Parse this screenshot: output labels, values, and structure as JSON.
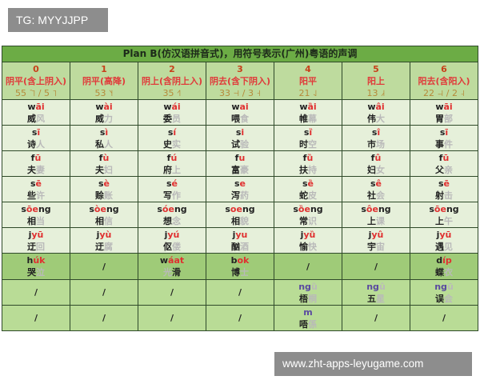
{
  "watermark_top": "TG: MYYJJPP",
  "watermark_bottom": "www.zht-apps-leyugame.com",
  "title": "Plan B(仿汉语拼音式)，用符号表示(广州)粤语的声调",
  "headers": [
    {
      "num": "0",
      "name": "阴平(含上阴入)",
      "value": "55 ˥˥ / 5 ˥"
    },
    {
      "num": "1",
      "name": "阴平(高降)",
      "value": "53 ˥˧"
    },
    {
      "num": "2",
      "name": "阴上(含阴上入)",
      "value": "35 ˧˥"
    },
    {
      "num": "3",
      "name": "阴去(含下阴入)",
      "value": "33 ˧˧ / 3 ˧"
    },
    {
      "num": "4",
      "name": "阳平",
      "value": "21 ˨˩"
    },
    {
      "num": "5",
      "name": "阳上",
      "value": "13 ˩˧"
    },
    {
      "num": "6",
      "name": "阳去(含阳入)",
      "value": "22 ˨˨ / 2 ˨"
    }
  ],
  "rows": [
    {
      "style": "light",
      "cells": [
        {
          "ini": "w",
          "fin": "āi",
          "w1": "威",
          "w2": "风"
        },
        {
          "ini": "w",
          "fin": "ài",
          "w1": "威",
          "w2": "力"
        },
        {
          "ini": "w",
          "fin": "ái",
          "w1": "委",
          "w2": "员"
        },
        {
          "ini": "w",
          "fin": "ai",
          "w1": "喂",
          "w2": "食"
        },
        {
          "ini": "w",
          "fin": "ȁi",
          "w1": "帷",
          "w2": "幕"
        },
        {
          "ini": "w",
          "fin": "âi",
          "w1": "伟",
          "w2": "大"
        },
        {
          "ini": "w",
          "fin": "āi",
          "w1": "胃",
          "w2": "部"
        }
      ]
    },
    {
      "style": "light",
      "cells": [
        {
          "ini": "s",
          "fin": "ī",
          "w1": "诗",
          "w2": "人"
        },
        {
          "ini": "s",
          "fin": "ì",
          "w1": "私",
          "w2": "人"
        },
        {
          "ini": "s",
          "fin": "í",
          "w1": "史",
          "w2": "实"
        },
        {
          "ini": "s",
          "fin": "i",
          "w1": "试",
          "w2": "验"
        },
        {
          "ini": "s",
          "fin": "ȉ",
          "w1": "时",
          "w2": "空"
        },
        {
          "ini": "s",
          "fin": "î",
          "w1": "市",
          "w2": "场"
        },
        {
          "ini": "s",
          "fin": "ī",
          "w1": "事",
          "w2": "件"
        }
      ]
    },
    {
      "style": "light",
      "cells": [
        {
          "ini": "f",
          "fin": "ū",
          "w1": "夫",
          "w2": "妻"
        },
        {
          "ini": "f",
          "fin": "ù",
          "w1": "夫",
          "w2": "妇"
        },
        {
          "ini": "f",
          "fin": "ú",
          "w1": "府",
          "w2": "上"
        },
        {
          "ini": "f",
          "fin": "u",
          "w1": "富",
          "w2": "豪"
        },
        {
          "ini": "f",
          "fin": "ȕ",
          "w1": "扶",
          "w2": "持"
        },
        {
          "ini": "f",
          "fin": "û",
          "w1": "妇",
          "w2": "女"
        },
        {
          "ini": "f",
          "fin": "ū",
          "w1": "父",
          "w2": "亲"
        }
      ]
    },
    {
      "style": "light",
      "cells": [
        {
          "ini": "s",
          "fin": "ē",
          "w1": "些",
          "w2": "许"
        },
        {
          "ini": "s",
          "fin": "è",
          "w1": "赊",
          "w2": "账"
        },
        {
          "ini": "s",
          "fin": "é",
          "w1": "写",
          "w2": "作"
        },
        {
          "ini": "s",
          "fin": "e",
          "w1": "泻",
          "w2": "药"
        },
        {
          "ini": "s",
          "fin": "ȅ",
          "w1": "蛇",
          "w2": "皮"
        },
        {
          "ini": "s",
          "fin": "ê",
          "w1": "社",
          "w2": "会"
        },
        {
          "ini": "s",
          "fin": "ē",
          "w1": "射",
          "w2": "击"
        }
      ]
    },
    {
      "style": "light",
      "cells": [
        {
          "ini": "s",
          "fin": "ōe",
          "tail": "ng",
          "w1": "相",
          "w2": "当"
        },
        {
          "ini": "s",
          "fin": "òe",
          "tail": "ng",
          "w1": "相",
          "w2": "信"
        },
        {
          "ini": "s",
          "fin": "óe",
          "tail": "ng",
          "w1": "想",
          "w2": "念"
        },
        {
          "ini": "s",
          "fin": "oe",
          "tail": "ng",
          "w1": "相",
          "w2": "貌"
        },
        {
          "ini": "s",
          "fin": "ȍe",
          "tail": "ng",
          "w1": "常",
          "w2": "识"
        },
        {
          "ini": "s",
          "fin": "ôe",
          "tail": "ng",
          "w1": "上",
          "w2": "课"
        },
        {
          "ini": "s",
          "fin": "ōe",
          "tail": "ng",
          "w1": "上",
          "w2": "午"
        }
      ]
    },
    {
      "style": "light",
      "cells": [
        {
          "ini": "j",
          "fin": "yū",
          "w1": "迂",
          "w2": "回"
        },
        {
          "ini": "j",
          "fin": "yù",
          "w1": "迂",
          "w2": "腐"
        },
        {
          "ini": "j",
          "fin": "yú",
          "w1": "伛",
          "w2": "偻"
        },
        {
          "ini": "j",
          "fin": "yu",
          "w1": "酗",
          "w2": "酒"
        },
        {
          "ini": "j",
          "fin": "yȕ",
          "w1": "愉",
          "w2": "快"
        },
        {
          "ini": "j",
          "fin": "yû",
          "w1": "宇",
          "w2": "宙"
        },
        {
          "ini": "j",
          "fin": "yū",
          "w1": "遇",
          "w2": "见"
        }
      ]
    },
    {
      "style": "enter",
      "cells": [
        {
          "ini": "h",
          "fin": "úk",
          "w1": "哭",
          "w2": "泣"
        },
        {
          "slash": "/"
        },
        {
          "ini": "w",
          "fin": "áat",
          "pre": "光",
          "w1": "滑"
        },
        {
          "ini": "b",
          "fin": "ok",
          "w1": "博",
          "w2": "士"
        },
        {
          "slash": "/"
        },
        {
          "slash": "/"
        },
        {
          "ini": "d",
          "fin": "íp",
          "w1": "蝶",
          "w2": "衣"
        }
      ]
    },
    {
      "style": "mid",
      "cells": [
        {
          "slash": "/"
        },
        {
          "slash": "/"
        },
        {
          "slash": "/"
        },
        {
          "slash": "/"
        },
        {
          "ini": "ng",
          "fin": "ȕ",
          "purple": true,
          "w1": "梧",
          "w2": "桐"
        },
        {
          "ini": "ng",
          "fin": "û",
          "purple": true,
          "w1": "五",
          "w2": "星"
        },
        {
          "ini": "ng",
          "fin": "ū",
          "purple": true,
          "w1": "误",
          "w2": "会"
        }
      ]
    },
    {
      "style": "mid",
      "cells": [
        {
          "slash": "/"
        },
        {
          "slash": "/"
        },
        {
          "slash": "/"
        },
        {
          "slash": "/"
        },
        {
          "ini": "m",
          "purple": true,
          "w1": "唔",
          "w2": "係"
        },
        {
          "slash": "/"
        },
        {
          "slash": "/"
        }
      ]
    }
  ]
}
